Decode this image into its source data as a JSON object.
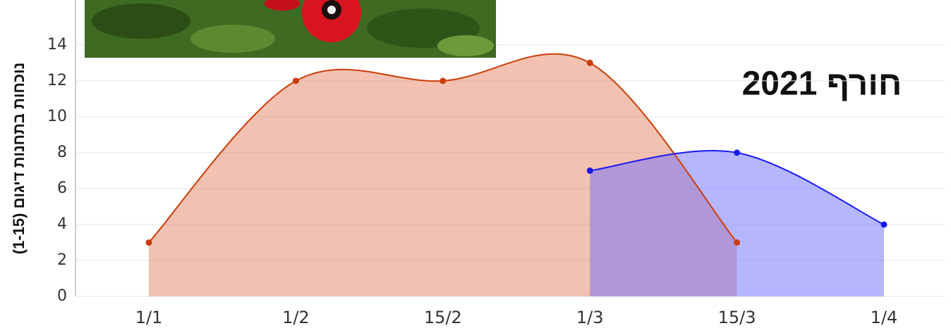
{
  "chart_data": {
    "type": "area",
    "title": "חורף 2021",
    "y_label": "נוכחות בתחנות דיגום (1-15)",
    "categories": [
      "1/1",
      "1/2",
      "15/2",
      "1/3",
      "15/3",
      "1/4"
    ],
    "series": [
      {
        "color": "#cc3d0a",
        "values": [
          3,
          12,
          12,
          13,
          3,
          null
        ]
      },
      {
        "color": "#1a1aee",
        "values": [
          null,
          null,
          null,
          7,
          8,
          4
        ]
      }
    ],
    "ylim": [
      0,
      16.5
    ],
    "yticks": [
      0,
      2,
      4,
      6,
      8,
      10,
      12,
      14
    ],
    "grid": true
  }
}
